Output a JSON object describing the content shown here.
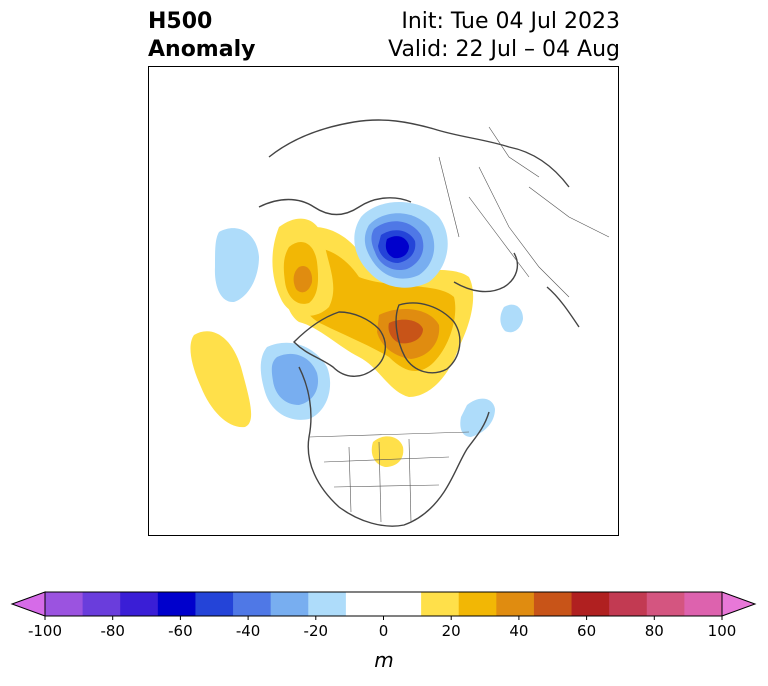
{
  "title": {
    "left_line1": "H500",
    "left_line2": "Anomaly",
    "right_line1": "Init: Tue 04 Jul 2023",
    "right_line2": "Valid: 22 Jul – 04 Aug"
  },
  "colorbar": {
    "label": "m",
    "ticks": [
      "-100",
      "-80",
      "-60",
      "-40",
      "-20",
      "0",
      "20",
      "40",
      "60",
      "80",
      "100"
    ],
    "min": -100,
    "max": 100,
    "colors": [
      "#d66be8",
      "#9b53e0",
      "#6a3ddc",
      "#3a1ed6",
      "#0000cc",
      "#2444d8",
      "#4f78e6",
      "#78aef0",
      "#aedcfa",
      "#ffffff",
      "#ffffff",
      "#ffe04a",
      "#f2b705",
      "#e08c10",
      "#c85418",
      "#b02020",
      "#c23a52",
      "#d45580",
      "#dd62ae",
      "#e878d8"
    ]
  },
  "map": {
    "region": "North America / Arctic polar stereographic",
    "anomalies": [
      {
        "name": "Siberia/Arctic low",
        "sign": "negative",
        "peak_m": -70
      },
      {
        "name": "Greenland / Canadian Arctic ridge",
        "sign": "positive",
        "peak_m": 60
      },
      {
        "name": "Alaska/Yukon ridge",
        "sign": "positive",
        "peak_m": 40
      },
      {
        "name": "Gulf of Alaska trough",
        "sign": "negative",
        "peak_m": -30
      },
      {
        "name": "NE Pacific ridge",
        "sign": "positive",
        "peak_m": 20
      },
      {
        "name": "Central Pacific trough",
        "sign": "negative",
        "peak_m": -20
      },
      {
        "name": "Great Lakes ridge",
        "sign": "positive",
        "peak_m": 20
      },
      {
        "name": "NW Atlantic trough",
        "sign": "negative",
        "peak_m": -20
      },
      {
        "name": "Iceland trough",
        "sign": "negative",
        "peak_m": -20
      }
    ]
  }
}
